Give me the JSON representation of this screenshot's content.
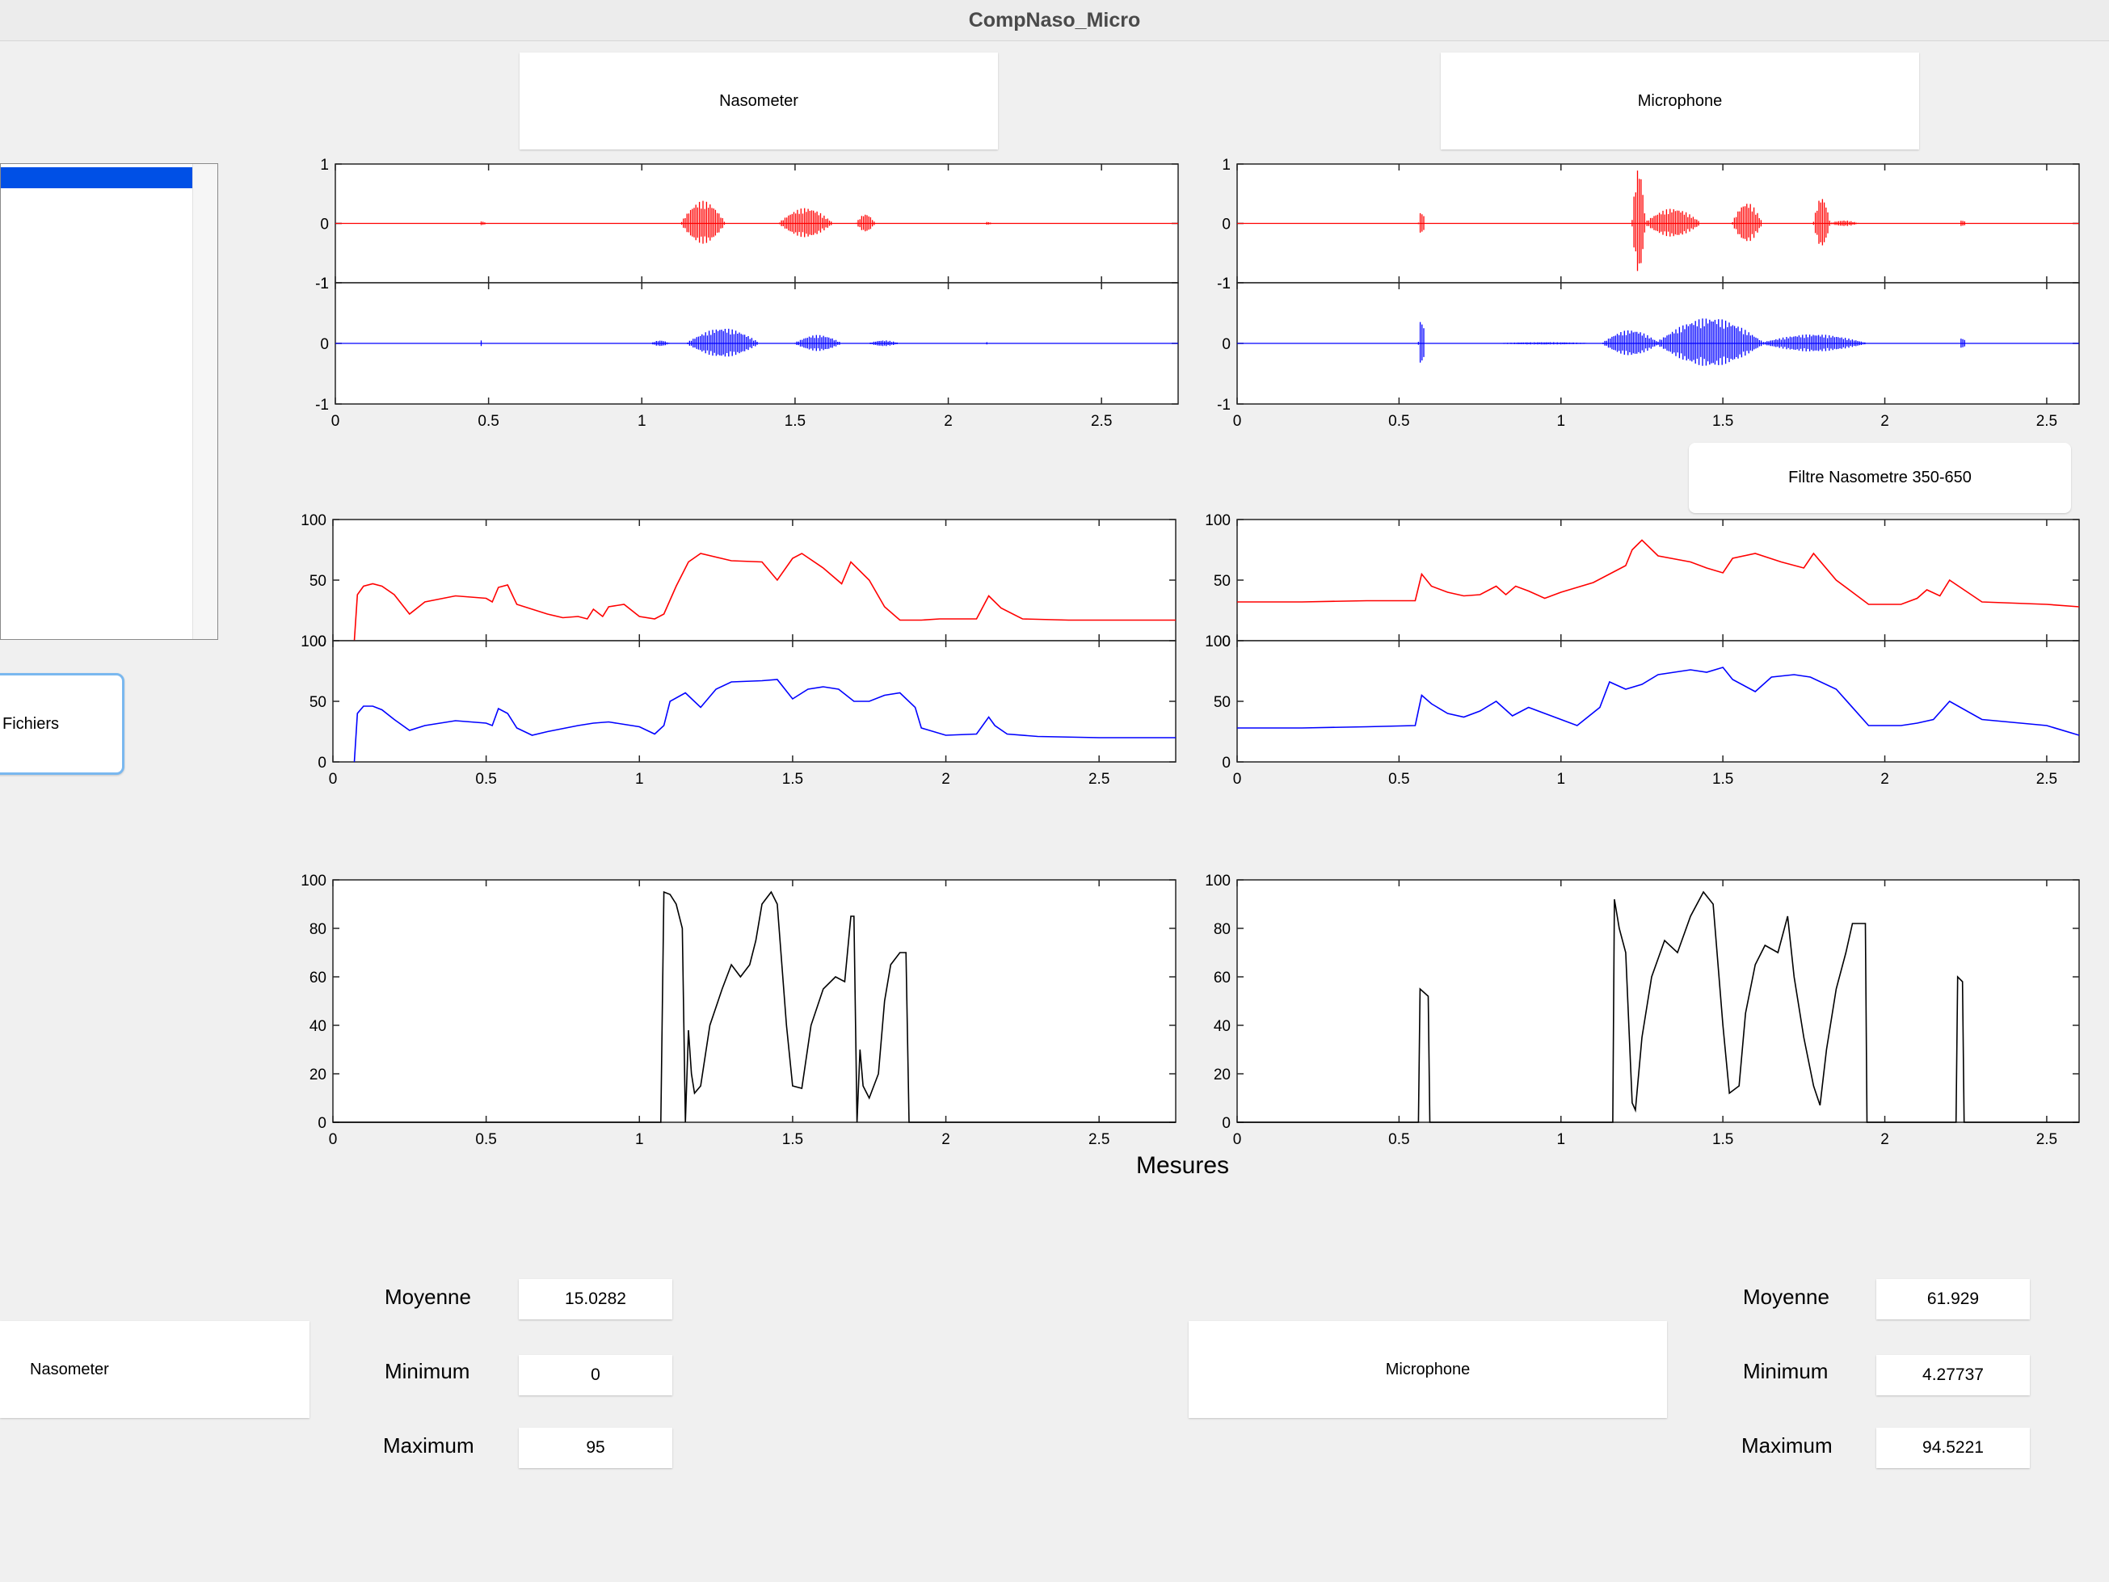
{
  "window": {
    "title": "CompNaso_Micro"
  },
  "buttons": {
    "nasometer_top": "Nasometer",
    "microphone_top": "Microphone",
    "filtre": "Filtre Nasometre 350-650",
    "fichiers": "Fichiers",
    "nasometer_bottom": "Nasometer",
    "microphone_bottom": "Microphone"
  },
  "mesures_label": "Mesures",
  "stats": {
    "nasometer": {
      "moyenne_label": "Moyenne",
      "moyenne": "15.0282",
      "minimum_label": "Minimum",
      "minimum": "0",
      "maximum_label": "Maximum",
      "maximum": "95"
    },
    "microphone": {
      "moyenne_label": "Moyenne",
      "moyenne": "61.929",
      "minimum_label": "Minimum",
      "minimum": "4.27737",
      "maximum_label": "Maximum",
      "maximum": "94.5221"
    }
  },
  "colors": {
    "red": "#ff0000",
    "blue": "#0000ff",
    "black": "#000000",
    "selection": "#0050e6",
    "focus": "#7ab8ef"
  },
  "chart_data": [
    {
      "id": "naso-waveform",
      "type": "line",
      "xlim": [
        0,
        2.75
      ],
      "ylim": [
        -1,
        1
      ],
      "xticks": [
        "0",
        "0.5",
        "1",
        "1.5",
        "2",
        "2.5"
      ],
      "yticks": [
        "-1",
        "0",
        "1"
      ],
      "series": [
        {
          "color": "#ff0000",
          "bursts": [
            [
              0.47,
              0.49,
              0.04
            ],
            [
              1.13,
              1.27,
              0.38
            ],
            [
              1.45,
              1.62,
              0.26
            ],
            [
              1.7,
              1.76,
              0.16
            ],
            [
              2.12,
              2.14,
              0.03
            ]
          ]
        },
        {
          "color": "#0000ff",
          "bursts": [
            [
              0.47,
              0.48,
              0.05
            ],
            [
              1.03,
              1.09,
              0.05
            ],
            [
              1.15,
              1.38,
              0.25
            ],
            [
              1.5,
              1.65,
              0.14
            ],
            [
              1.74,
              1.84,
              0.05
            ],
            [
              2.12,
              2.13,
              0.02
            ]
          ]
        }
      ]
    },
    {
      "id": "micro-waveform",
      "type": "line",
      "xlim": [
        0,
        2.6
      ],
      "ylim": [
        -1,
        1
      ],
      "xticks": [
        "0",
        "0.5",
        "1",
        "1.5",
        "2",
        "2.5"
      ],
      "yticks": [
        "-1",
        "0",
        "1"
      ],
      "series": [
        {
          "color": "#ff0000",
          "bursts": [
            [
              0.56,
              0.58,
              0.22
            ],
            [
              1.22,
              1.26,
              0.95
            ],
            [
              1.26,
              1.43,
              0.25
            ],
            [
              1.53,
              1.62,
              0.35
            ],
            [
              1.78,
              1.83,
              0.45
            ],
            [
              1.83,
              1.92,
              0.05
            ],
            [
              2.23,
              2.25,
              0.06
            ]
          ]
        },
        {
          "color": "#0000ff",
          "bursts": [
            [
              0.56,
              0.58,
              0.45
            ],
            [
              0.78,
              1.12,
              0.02
            ],
            [
              1.13,
              1.3,
              0.22
            ],
            [
              1.3,
              1.62,
              0.42
            ],
            [
              1.62,
              1.94,
              0.15
            ],
            [
              2.23,
              2.25,
              0.1
            ]
          ]
        }
      ]
    },
    {
      "id": "naso-energy",
      "type": "line",
      "xlim": [
        0,
        2.75
      ],
      "ylim": [
        0,
        100
      ],
      "xticks": [
        "0",
        "0.5",
        "1",
        "1.5",
        "2",
        "2.5"
      ],
      "yticks": [
        "0",
        "50",
        "100"
      ],
      "series": [
        {
          "color": "#ff0000",
          "x": [
            0.07,
            0.08,
            0.1,
            0.13,
            0.16,
            0.2,
            0.25,
            0.3,
            0.4,
            0.5,
            0.52,
            0.54,
            0.57,
            0.6,
            0.7,
            0.75,
            0.8,
            0.83,
            0.85,
            0.88,
            0.9,
            0.95,
            1.0,
            1.05,
            1.08,
            1.12,
            1.16,
            1.2,
            1.3,
            1.4,
            1.45,
            1.5,
            1.53,
            1.6,
            1.66,
            1.69,
            1.75,
            1.8,
            1.85,
            1.92,
            1.98,
            2.05,
            2.1,
            2.14,
            2.18,
            2.25,
            2.4,
            2.6,
            2.75
          ],
          "y": [
            0,
            38,
            45,
            47,
            45,
            38,
            22,
            32,
            37,
            35,
            32,
            44,
            46,
            30,
            22,
            19,
            20,
            18,
            26,
            20,
            28,
            30,
            20,
            18,
            22,
            45,
            65,
            72,
            66,
            65,
            50,
            68,
            72,
            60,
            47,
            65,
            50,
            28,
            17,
            17,
            18,
            18,
            18,
            37,
            27,
            18,
            17,
            17,
            17
          ]
        },
        {
          "color": "#0000ff",
          "x": [
            0.07,
            0.08,
            0.1,
            0.13,
            0.16,
            0.2,
            0.25,
            0.3,
            0.4,
            0.5,
            0.52,
            0.54,
            0.57,
            0.6,
            0.65,
            0.7,
            0.8,
            0.85,
            0.9,
            0.95,
            1.0,
            1.05,
            1.08,
            1.1,
            1.15,
            1.2,
            1.25,
            1.3,
            1.4,
            1.45,
            1.5,
            1.55,
            1.6,
            1.65,
            1.7,
            1.75,
            1.8,
            1.85,
            1.9,
            1.92,
            2.0,
            2.1,
            2.14,
            2.16,
            2.2,
            2.3,
            2.5,
            2.75
          ],
          "y": [
            0,
            40,
            46,
            46,
            43,
            35,
            26,
            30,
            34,
            32,
            30,
            44,
            40,
            28,
            22,
            25,
            30,
            32,
            33,
            31,
            29,
            23,
            30,
            50,
            57,
            45,
            60,
            66,
            67,
            68,
            52,
            60,
            62,
            60,
            50,
            50,
            55,
            57,
            45,
            28,
            22,
            23,
            37,
            30,
            23,
            21,
            20,
            20
          ]
        }
      ]
    },
    {
      "id": "micro-energy",
      "type": "line",
      "xlim": [
        0,
        2.6
      ],
      "ylim": [
        0,
        100
      ],
      "xticks": [
        "0",
        "0.5",
        "1",
        "1.5",
        "2",
        "2.5"
      ],
      "yticks": [
        "0",
        "50",
        "100"
      ],
      "series": [
        {
          "color": "#ff0000",
          "x": [
            0,
            0.2,
            0.4,
            0.55,
            0.57,
            0.6,
            0.65,
            0.7,
            0.75,
            0.8,
            0.83,
            0.86,
            0.9,
            0.95,
            1.0,
            1.1,
            1.2,
            1.22,
            1.25,
            1.3,
            1.4,
            1.45,
            1.5,
            1.53,
            1.6,
            1.68,
            1.75,
            1.78,
            1.85,
            1.95,
            2.05,
            2.1,
            2.13,
            2.17,
            2.2,
            2.3,
            2.5,
            2.6
          ],
          "y": [
            32,
            32,
            33,
            33,
            55,
            45,
            40,
            37,
            38,
            45,
            38,
            45,
            41,
            35,
            40,
            48,
            62,
            75,
            83,
            70,
            65,
            60,
            56,
            68,
            72,
            65,
            60,
            72,
            50,
            30,
            30,
            35,
            42,
            37,
            50,
            32,
            30,
            28
          ]
        },
        {
          "color": "#0000ff",
          "x": [
            0,
            0.2,
            0.4,
            0.55,
            0.57,
            0.6,
            0.65,
            0.7,
            0.75,
            0.8,
            0.85,
            0.9,
            0.95,
            1.0,
            1.05,
            1.12,
            1.15,
            1.2,
            1.25,
            1.3,
            1.4,
            1.45,
            1.5,
            1.53,
            1.6,
            1.65,
            1.72,
            1.77,
            1.85,
            1.95,
            2.05,
            2.1,
            2.15,
            2.2,
            2.3,
            2.5,
            2.6
          ],
          "y": [
            28,
            28,
            29,
            30,
            55,
            48,
            40,
            37,
            42,
            50,
            38,
            45,
            40,
            35,
            30,
            45,
            66,
            60,
            64,
            72,
            76,
            74,
            78,
            68,
            58,
            70,
            72,
            70,
            60,
            30,
            30,
            32,
            35,
            50,
            35,
            30,
            22
          ]
        }
      ]
    },
    {
      "id": "naso-nasalance",
      "type": "line",
      "xlim": [
        0,
        2.75
      ],
      "ylim": [
        0,
        100
      ],
      "xticks": [
        "0",
        "0.5",
        "1",
        "1.5",
        "2",
        "2.5"
      ],
      "yticks": [
        "0",
        "20",
        "40",
        "60",
        "80",
        "100"
      ],
      "series": [
        {
          "color": "#000000",
          "x": [
            0,
            1.07,
            1.08,
            1.1,
            1.12,
            1.14,
            1.15,
            1.16,
            1.17,
            1.18,
            1.2,
            1.23,
            1.27,
            1.3,
            1.33,
            1.36,
            1.38,
            1.4,
            1.43,
            1.45,
            1.48,
            1.5,
            1.53,
            1.56,
            1.6,
            1.64,
            1.67,
            1.69,
            1.7,
            1.71,
            1.72,
            1.73,
            1.75,
            1.78,
            1.8,
            1.82,
            1.85,
            1.86,
            1.87,
            1.88,
            2.75
          ],
          "y": [
            0,
            0,
            95,
            94,
            90,
            80,
            0,
            38,
            20,
            12,
            15,
            40,
            55,
            65,
            60,
            65,
            75,
            90,
            95,
            90,
            40,
            15,
            14,
            40,
            55,
            60,
            58,
            85,
            85,
            0,
            30,
            15,
            10,
            20,
            50,
            65,
            70,
            70,
            70,
            0,
            0
          ]
        }
      ]
    },
    {
      "id": "micro-nasalance",
      "type": "line",
      "xlim": [
        0,
        2.6
      ],
      "ylim": [
        0,
        100
      ],
      "xticks": [
        "0",
        "0.5",
        "1",
        "1.5",
        "2",
        "2.5"
      ],
      "yticks": [
        "0",
        "20",
        "40",
        "60",
        "80",
        "100"
      ],
      "series": [
        {
          "color": "#000000",
          "x": [
            0,
            0.56,
            0.565,
            0.59,
            0.595,
            1.16,
            1.165,
            1.18,
            1.2,
            1.22,
            1.23,
            1.25,
            1.28,
            1.32,
            1.36,
            1.4,
            1.44,
            1.47,
            1.5,
            1.52,
            1.55,
            1.57,
            1.6,
            1.63,
            1.67,
            1.7,
            1.72,
            1.75,
            1.78,
            1.8,
            1.82,
            1.85,
            1.88,
            1.9,
            1.92,
            1.94,
            1.945,
            2.22,
            2.225,
            2.24,
            2.245,
            2.6
          ],
          "y": [
            0,
            0,
            55,
            52,
            0,
            0,
            92,
            80,
            70,
            8,
            5,
            35,
            60,
            75,
            70,
            85,
            95,
            90,
            40,
            12,
            15,
            45,
            65,
            73,
            70,
            85,
            60,
            35,
            15,
            7,
            30,
            55,
            70,
            82,
            82,
            82,
            0,
            0,
            60,
            58,
            0,
            0
          ]
        }
      ]
    }
  ]
}
